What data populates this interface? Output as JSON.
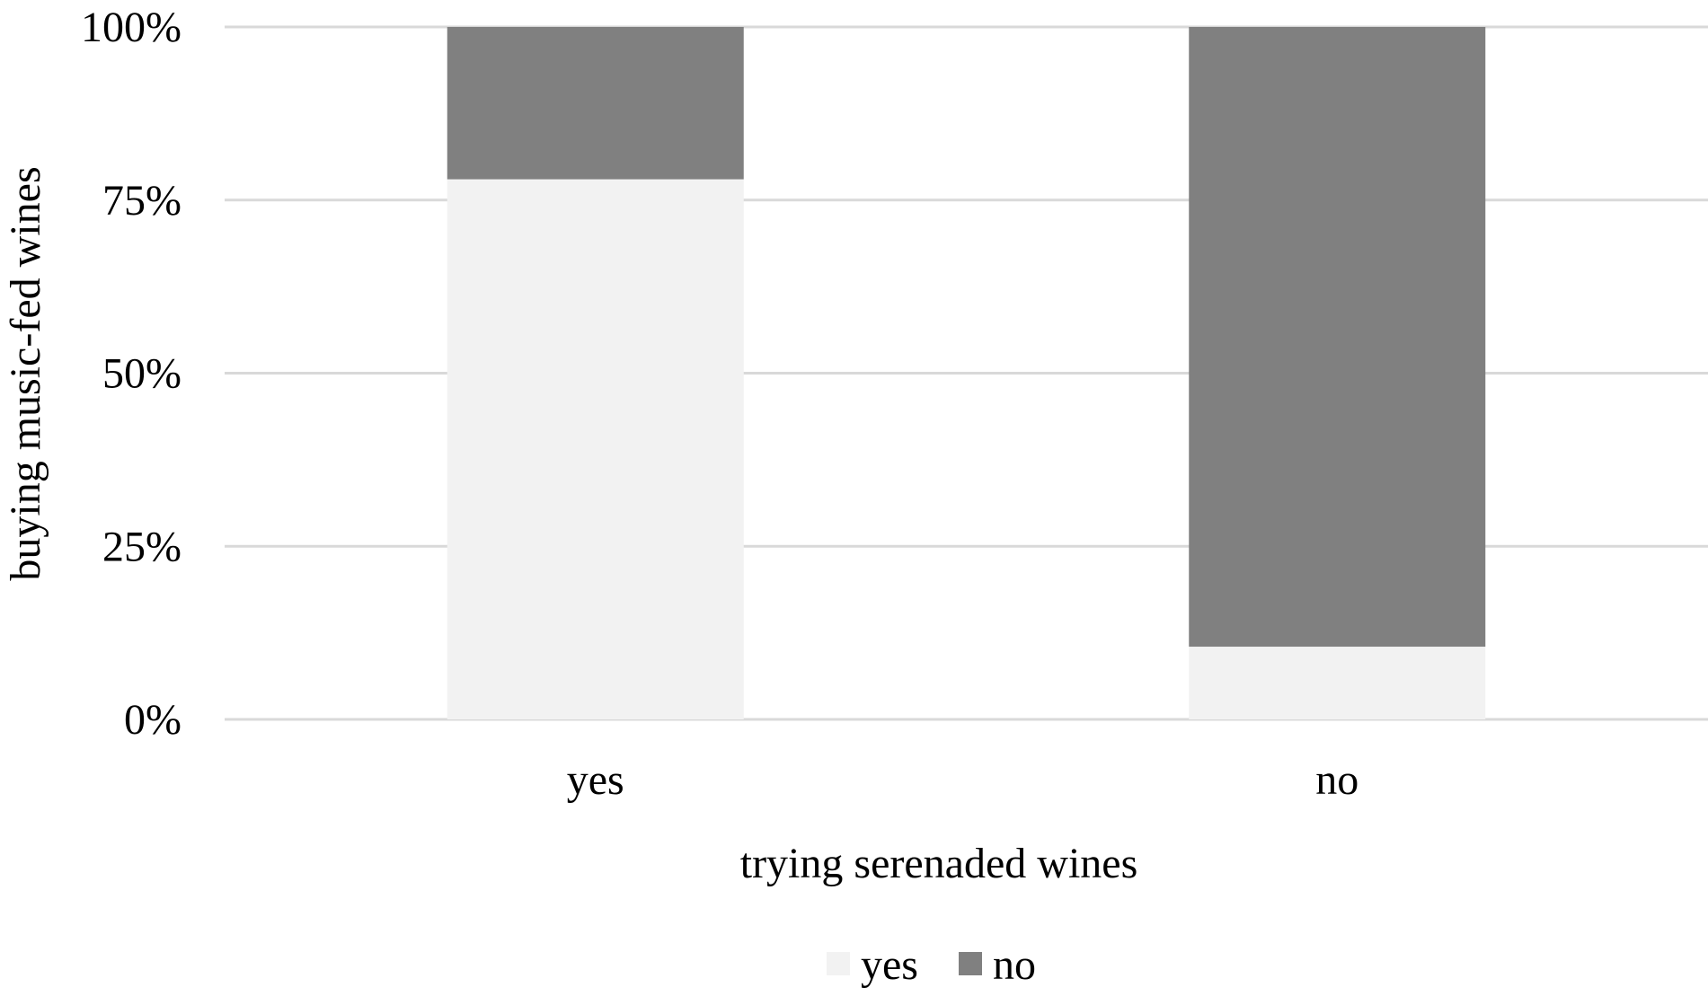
{
  "chart_data": {
    "type": "bar",
    "stacked": true,
    "percent_stacked": true,
    "title": "",
    "xlabel": "trying serenaded wines",
    "ylabel": "buying music-fed wines",
    "categories": [
      "yes",
      "no"
    ],
    "series": [
      {
        "name": "yes",
        "values": [
          78,
          10.5
        ],
        "color": "#f2f2f2"
      },
      {
        "name": "no",
        "values": [
          22,
          89.5
        ],
        "color": "#808080"
      }
    ],
    "ylim": [
      0,
      100
    ],
    "yticks": [
      0,
      25,
      50,
      75,
      100
    ],
    "ytick_labels": [
      "0%",
      "25%",
      "50%",
      "75%",
      "100%"
    ],
    "grid": true,
    "gridline_color": "#d9d9d9",
    "legend_position": "bottom"
  }
}
